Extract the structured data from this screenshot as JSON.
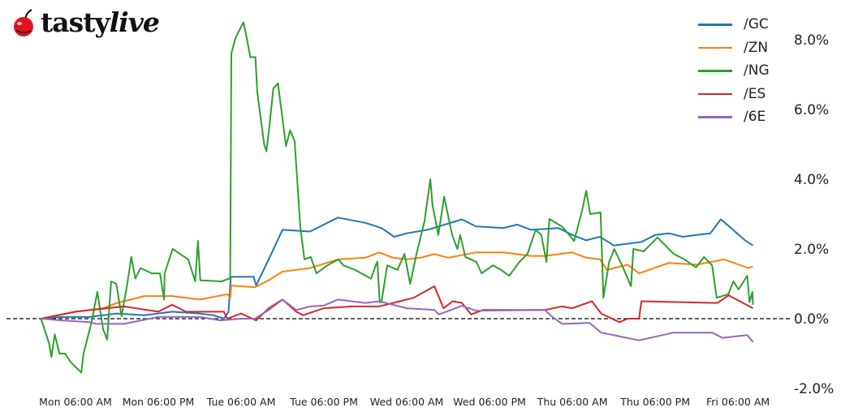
{
  "logo": {
    "text_main": "tasty",
    "text_italic": "live"
  },
  "chart_data": {
    "type": "line",
    "title": "",
    "xlabel": "",
    "ylabel": "",
    "xlim": [
      "Sun 20:00",
      "Fri 13:45"
    ],
    "ylim": [
      -2.3,
      9.05
    ],
    "y_unit": "%",
    "grid": false,
    "legend_position": "top-right",
    "reference_line": {
      "y": 0,
      "style": "dashed",
      "color": "#000000"
    },
    "x_ticks": [
      {
        "at": "Mon 06:00",
        "label": "Mon 06:00 AM"
      },
      {
        "at": "Mon 18:00",
        "label": "Mon 06:00 PM"
      },
      {
        "at": "Tue 06:00",
        "label": "Tue 06:00 AM"
      },
      {
        "at": "Tue 18:00",
        "label": "Tue 06:00 PM"
      },
      {
        "at": "Wed 06:00",
        "label": "Wed 06:00 AM"
      },
      {
        "at": "Wed 18:00",
        "label": "Wed 06:00 PM"
      },
      {
        "at": "Thu 06:00",
        "label": "Thu 06:00 AM"
      },
      {
        "at": "Thu 18:00",
        "label": "Thu 06:00 PM"
      },
      {
        "at": "Fri 06:00",
        "label": "Fri 06:00 AM"
      }
    ],
    "y_ticks": [
      {
        "at": 8,
        "label": "8.0%"
      },
      {
        "at": 6,
        "label": "6.0%"
      },
      {
        "at": 4,
        "label": "4.0%"
      },
      {
        "at": 2,
        "label": "2.0%"
      },
      {
        "at": 0,
        "label": "0.0%"
      },
      {
        "at": -2,
        "label": "-2.0%"
      }
    ],
    "series": [
      {
        "name": "/GC",
        "color": "#1f77b4",
        "points": [
          [
            "Mon 01:00",
            0
          ],
          [
            "Mon 04:00",
            0.05
          ],
          [
            "Mon 08:00",
            0.05
          ],
          [
            "Mon 12:00",
            0.15
          ],
          [
            "Mon 16:00",
            0.1
          ],
          [
            "Mon 20:00",
            0.2
          ],
          [
            "Tue 00:00",
            0.15
          ],
          [
            "Tue 02:00",
            0.1
          ],
          [
            "Tue 03:30",
            0.0
          ],
          [
            "Tue 04:10",
            0.2
          ],
          [
            "Tue 04:30",
            1.2
          ],
          [
            "Tue 07:50",
            1.2
          ],
          [
            "Tue 08:10",
            0.95
          ],
          [
            "Tue 10:00",
            1.7
          ],
          [
            "Tue 12:00",
            2.55
          ],
          [
            "Tue 16:00",
            2.5
          ],
          [
            "Tue 19:00",
            2.8
          ],
          [
            "Tue 20:00",
            2.9
          ],
          [
            "Wed 00:00",
            2.75
          ],
          [
            "Wed 02:20",
            2.6
          ],
          [
            "Wed 04:10",
            2.35
          ],
          [
            "Wed 06:00",
            2.45
          ],
          [
            "Wed 09:00",
            2.55
          ],
          [
            "Wed 14:00",
            2.85
          ],
          [
            "Wed 16:00",
            2.65
          ],
          [
            "Wed 20:00",
            2.6
          ],
          [
            "Wed 22:00",
            2.7
          ],
          [
            "Thu 00:00",
            2.55
          ],
          [
            "Thu 04:00",
            2.6
          ],
          [
            "Thu 06:00",
            2.4
          ],
          [
            "Thu 08:00",
            2.25
          ],
          [
            "Thu 10:00",
            2.35
          ],
          [
            "Thu 12:00",
            2.1
          ],
          [
            "Thu 16:00",
            2.2
          ],
          [
            "Thu 18:00",
            2.4
          ],
          [
            "Thu 20:00",
            2.45
          ],
          [
            "Thu 22:00",
            2.35
          ],
          [
            "Fri 00:00",
            2.4
          ],
          [
            "Fri 02:00",
            2.45
          ],
          [
            "Fri 03:30",
            2.85
          ],
          [
            "Fri 05:00",
            2.6
          ],
          [
            "Fri 07:00",
            2.25
          ],
          [
            "Fri 08:10",
            2.1
          ]
        ]
      },
      {
        "name": "/ZN",
        "color": "#ff7f0e",
        "points": [
          [
            "Mon 01:00",
            0
          ],
          [
            "Mon 06:00",
            0.2
          ],
          [
            "Mon 10:00",
            0.3
          ],
          [
            "Mon 12:00",
            0.45
          ],
          [
            "Mon 16:00",
            0.65
          ],
          [
            "Mon 20:00",
            0.65
          ],
          [
            "Tue 00:00",
            0.55
          ],
          [
            "Tue 04:00",
            0.7
          ],
          [
            "Tue 04:25",
            0.6
          ],
          [
            "Tue 04:35",
            0.95
          ],
          [
            "Tue 08:00",
            0.9
          ],
          [
            "Tue 10:00",
            1.1
          ],
          [
            "Tue 12:00",
            1.35
          ],
          [
            "Tue 16:00",
            1.45
          ],
          [
            "Tue 20:00",
            1.7
          ],
          [
            "Wed 00:00",
            1.75
          ],
          [
            "Wed 02:00",
            1.9
          ],
          [
            "Wed 04:00",
            1.75
          ],
          [
            "Wed 06:00",
            1.7
          ],
          [
            "Wed 08:00",
            1.75
          ],
          [
            "Wed 10:00",
            1.85
          ],
          [
            "Wed 12:00",
            1.75
          ],
          [
            "Wed 16:00",
            1.9
          ],
          [
            "Wed 20:00",
            1.9
          ],
          [
            "Thu 00:00",
            1.8
          ],
          [
            "Thu 02:00",
            1.8
          ],
          [
            "Thu 06:00",
            1.9
          ],
          [
            "Thu 08:00",
            1.75
          ],
          [
            "Thu 10:00",
            1.7
          ],
          [
            "Thu 11:00",
            1.4
          ],
          [
            "Thu 14:00",
            1.55
          ],
          [
            "Thu 15:40",
            1.3
          ],
          [
            "Thu 20:00",
            1.6
          ],
          [
            "Fri 00:00",
            1.55
          ],
          [
            "Fri 04:00",
            1.7
          ],
          [
            "Fri 07:30",
            1.45
          ],
          [
            "Fri 08:10",
            1.5
          ]
        ]
      },
      {
        "name": "/NG",
        "color": "#2ca02c",
        "points": [
          [
            "Mon 01:00",
            0
          ],
          [
            "Mon 02:10",
            -0.7
          ],
          [
            "Mon 02:30",
            -1.1
          ],
          [
            "Mon 03:00",
            -0.45
          ],
          [
            "Mon 03:40",
            -1.0
          ],
          [
            "Mon 04:30",
            -1.0
          ],
          [
            "Mon 05:20",
            -1.25
          ],
          [
            "Mon 06:50",
            -1.55
          ],
          [
            "Mon 07:10",
            -1.0
          ],
          [
            "Mon 08:20",
            -0.1
          ],
          [
            "Mon 09:10",
            0.77
          ],
          [
            "Mon 10:00",
            -0.3
          ],
          [
            "Mon 10:35",
            -0.6
          ],
          [
            "Mon 11:10",
            1.07
          ],
          [
            "Mon 11:55",
            1.0
          ],
          [
            "Mon 12:40",
            0.07
          ],
          [
            "Mon 13:30",
            1.0
          ],
          [
            "Mon 14:05",
            1.77
          ],
          [
            "Mon 14:40",
            1.15
          ],
          [
            "Mon 15:25",
            1.45
          ],
          [
            "Mon 17:05",
            1.3
          ],
          [
            "Mon 18:15",
            1.3
          ],
          [
            "Mon 18:50",
            0.55
          ],
          [
            "Mon 18:55",
            1.3
          ],
          [
            "Mon 20:05",
            2.0
          ],
          [
            "Mon 22:20",
            1.7
          ],
          [
            "Mon 23:20",
            1.07
          ],
          [
            "Mon 23:45",
            2.23
          ],
          [
            "Tue 00:05",
            1.1
          ],
          [
            "Tue 03:10",
            1.07
          ],
          [
            "Tue 04:15",
            1.15
          ],
          [
            "Tue 04:25",
            1.15
          ],
          [
            "Tue 04:35",
            7.6
          ],
          [
            "Tue 05:10",
            8.05
          ],
          [
            "Tue 06:20",
            8.5
          ],
          [
            "Tue 06:40",
            8.2
          ],
          [
            "Tue 07:20",
            7.5
          ],
          [
            "Tue 08:05",
            7.5
          ],
          [
            "Tue 08:20",
            6.5
          ],
          [
            "Tue 09:20",
            5.0
          ],
          [
            "Tue 09:40",
            4.8
          ],
          [
            "Tue 10:05",
            5.5
          ],
          [
            "Tue 10:40",
            6.6
          ],
          [
            "Tue 11:20",
            6.75
          ],
          [
            "Tue 12:30",
            4.95
          ],
          [
            "Tue 13:05",
            5.4
          ],
          [
            "Tue 13:45",
            5.1
          ],
          [
            "Tue 14:35",
            2.63
          ],
          [
            "Tue 15:10",
            1.7
          ],
          [
            "Tue 16:05",
            1.77
          ],
          [
            "Tue 16:55",
            1.3
          ],
          [
            "Tue 18:30",
            1.53
          ],
          [
            "Tue 20:05",
            1.7
          ],
          [
            "Tue 20:50",
            1.53
          ],
          [
            "Tue 22:30",
            1.4
          ],
          [
            "Wed 00:50",
            1.15
          ],
          [
            "Wed 01:30",
            1.53
          ],
          [
            "Wed 01:45",
            1.63
          ],
          [
            "Wed 02:05",
            0.47
          ],
          [
            "Wed 02:20",
            0.47
          ],
          [
            "Wed 03:10",
            1.53
          ],
          [
            "Wed 04:40",
            1.4
          ],
          [
            "Wed 05:40",
            1.86
          ],
          [
            "Wed 06:30",
            1.0
          ],
          [
            "Wed 07:25",
            1.86
          ],
          [
            "Wed 08:35",
            2.8
          ],
          [
            "Wed 09:25",
            4.0
          ],
          [
            "Wed 09:45",
            3.25
          ],
          [
            "Wed 10:35",
            2.4
          ],
          [
            "Wed 11:25",
            3.5
          ],
          [
            "Wed 12:35",
            2.4
          ],
          [
            "Wed 13:20",
            2.0
          ],
          [
            "Wed 13:45",
            2.4
          ],
          [
            "Wed 14:30",
            1.77
          ],
          [
            "Wed 16:05",
            1.63
          ],
          [
            "Wed 16:50",
            1.3
          ],
          [
            "Wed 18:30",
            1.53
          ],
          [
            "Wed 19:40",
            1.4
          ],
          [
            "Wed 20:50",
            1.23
          ],
          [
            "Wed 22:20",
            1.63
          ],
          [
            "Wed 23:30",
            1.86
          ],
          [
            "Thu 00:40",
            2.55
          ],
          [
            "Thu 01:30",
            2.4
          ],
          [
            "Thu 02:15",
            1.63
          ],
          [
            "Thu 02:40",
            2.86
          ],
          [
            "Thu 04:35",
            2.63
          ],
          [
            "Thu 06:15",
            2.23
          ],
          [
            "Thu 07:25",
            3.1
          ],
          [
            "Thu 08:00",
            3.67
          ],
          [
            "Thu 08:35",
            3.0
          ],
          [
            "Thu 10:05",
            3.05
          ],
          [
            "Thu 10:30",
            0.6
          ],
          [
            "Thu 11:20",
            1.63
          ],
          [
            "Thu 12:05",
            2.0
          ],
          [
            "Thu 13:20",
            1.47
          ],
          [
            "Thu 14:30",
            0.93
          ],
          [
            "Thu 14:50",
            2.0
          ],
          [
            "Thu 16:20",
            1.93
          ],
          [
            "Thu 18:20",
            2.33
          ],
          [
            "Thu 20:40",
            1.86
          ],
          [
            "Thu 22:15",
            1.7
          ],
          [
            "Thu 23:55",
            1.47
          ],
          [
            "Fri 01:05",
            1.77
          ],
          [
            "Fri 02:15",
            1.53
          ],
          [
            "Fri 02:55",
            0.6
          ],
          [
            "Fri 04:35",
            0.7
          ],
          [
            "Fri 05:20",
            1.07
          ],
          [
            "Fri 06:05",
            0.84
          ],
          [
            "Fri 07:20",
            1.23
          ],
          [
            "Fri 07:40",
            0.47
          ],
          [
            "Fri 08:05",
            0.77
          ],
          [
            "Fri 08:10",
            0.4
          ]
        ]
      },
      {
        "name": "/ES",
        "color": "#d62728",
        "points": [
          [
            "Mon 01:00",
            0
          ],
          [
            "Mon 06:00",
            0.2
          ],
          [
            "Mon 13:00",
            0.35
          ],
          [
            "Mon 18:00",
            0.2
          ],
          [
            "Mon 20:00",
            0.4
          ],
          [
            "Mon 22:00",
            0.2
          ],
          [
            "Tue 03:30",
            0.2
          ],
          [
            "Tue 04:00",
            0.0
          ],
          [
            "Tue 06:00",
            0.15
          ],
          [
            "Tue 08:10",
            -0.05
          ],
          [
            "Tue 10:00",
            0.3
          ],
          [
            "Tue 12:00",
            0.55
          ],
          [
            "Tue 14:00",
            0.2
          ],
          [
            "Tue 15:00",
            0.1
          ],
          [
            "Tue 18:00",
            0.3
          ],
          [
            "Tue 22:00",
            0.35
          ],
          [
            "Wed 02:00",
            0.35
          ],
          [
            "Wed 05:00",
            0.5
          ],
          [
            "Wed 07:00",
            0.6
          ],
          [
            "Wed 10:00",
            0.93
          ],
          [
            "Wed 11:20",
            0.3
          ],
          [
            "Wed 12:40",
            0.5
          ],
          [
            "Wed 14:00",
            0.45
          ],
          [
            "Wed 15:20",
            0.12
          ],
          [
            "Wed 17:00",
            0.25
          ],
          [
            "Thu 02:00",
            0.25
          ],
          [
            "Thu 04:30",
            0.35
          ],
          [
            "Thu 06:00",
            0.3
          ],
          [
            "Thu 08:50",
            0.5
          ],
          [
            "Thu 10:10",
            0.15
          ],
          [
            "Thu 12:50",
            -0.1
          ],
          [
            "Thu 14:00",
            0.0
          ],
          [
            "Thu 15:40",
            0.0
          ],
          [
            "Thu 16:00",
            0.5
          ],
          [
            "Fri 03:00",
            0.45
          ],
          [
            "Fri 04:40",
            0.67
          ],
          [
            "Fri 08:10",
            0.3
          ]
        ]
      },
      {
        "name": "/6E",
        "color": "#9467bd",
        "points": [
          [
            "Mon 01:00",
            0
          ],
          [
            "Mon 04:00",
            -0.05
          ],
          [
            "Mon 08:00",
            -0.1
          ],
          [
            "Mon 09:00",
            -0.15
          ],
          [
            "Mon 13:00",
            -0.15
          ],
          [
            "Mon 18:00",
            0.05
          ],
          [
            "Tue 00:00",
            0.05
          ],
          [
            "Tue 03:00",
            -0.05
          ],
          [
            "Tue 06:00",
            0.0
          ],
          [
            "Tue 08:00",
            0.0
          ],
          [
            "Tue 10:00",
            0.25
          ],
          [
            "Tue 12:00",
            0.55
          ],
          [
            "Tue 14:00",
            0.25
          ],
          [
            "Tue 16:00",
            0.35
          ],
          [
            "Tue 18:00",
            0.38
          ],
          [
            "Tue 20:00",
            0.55
          ],
          [
            "Wed 00:00",
            0.45
          ],
          [
            "Wed 02:00",
            0.5
          ],
          [
            "Wed 06:00",
            0.3
          ],
          [
            "Wed 10:00",
            0.25
          ],
          [
            "Wed 10:40",
            0.12
          ],
          [
            "Wed 14:00",
            0.37
          ],
          [
            "Wed 16:00",
            0.23
          ],
          [
            "Thu 02:00",
            0.25
          ],
          [
            "Thu 03:00",
            0.07
          ],
          [
            "Thu 04:30",
            -0.15
          ],
          [
            "Thu 08:30",
            -0.12
          ],
          [
            "Thu 10:10",
            -0.4
          ],
          [
            "Thu 15:40",
            -0.62
          ],
          [
            "Thu 20:40",
            -0.4
          ],
          [
            "Fri 02:15",
            -0.4
          ],
          [
            "Fri 03:45",
            -0.55
          ],
          [
            "Fri 07:20",
            -0.47
          ],
          [
            "Fri 08:10",
            -0.67
          ]
        ]
      }
    ]
  }
}
